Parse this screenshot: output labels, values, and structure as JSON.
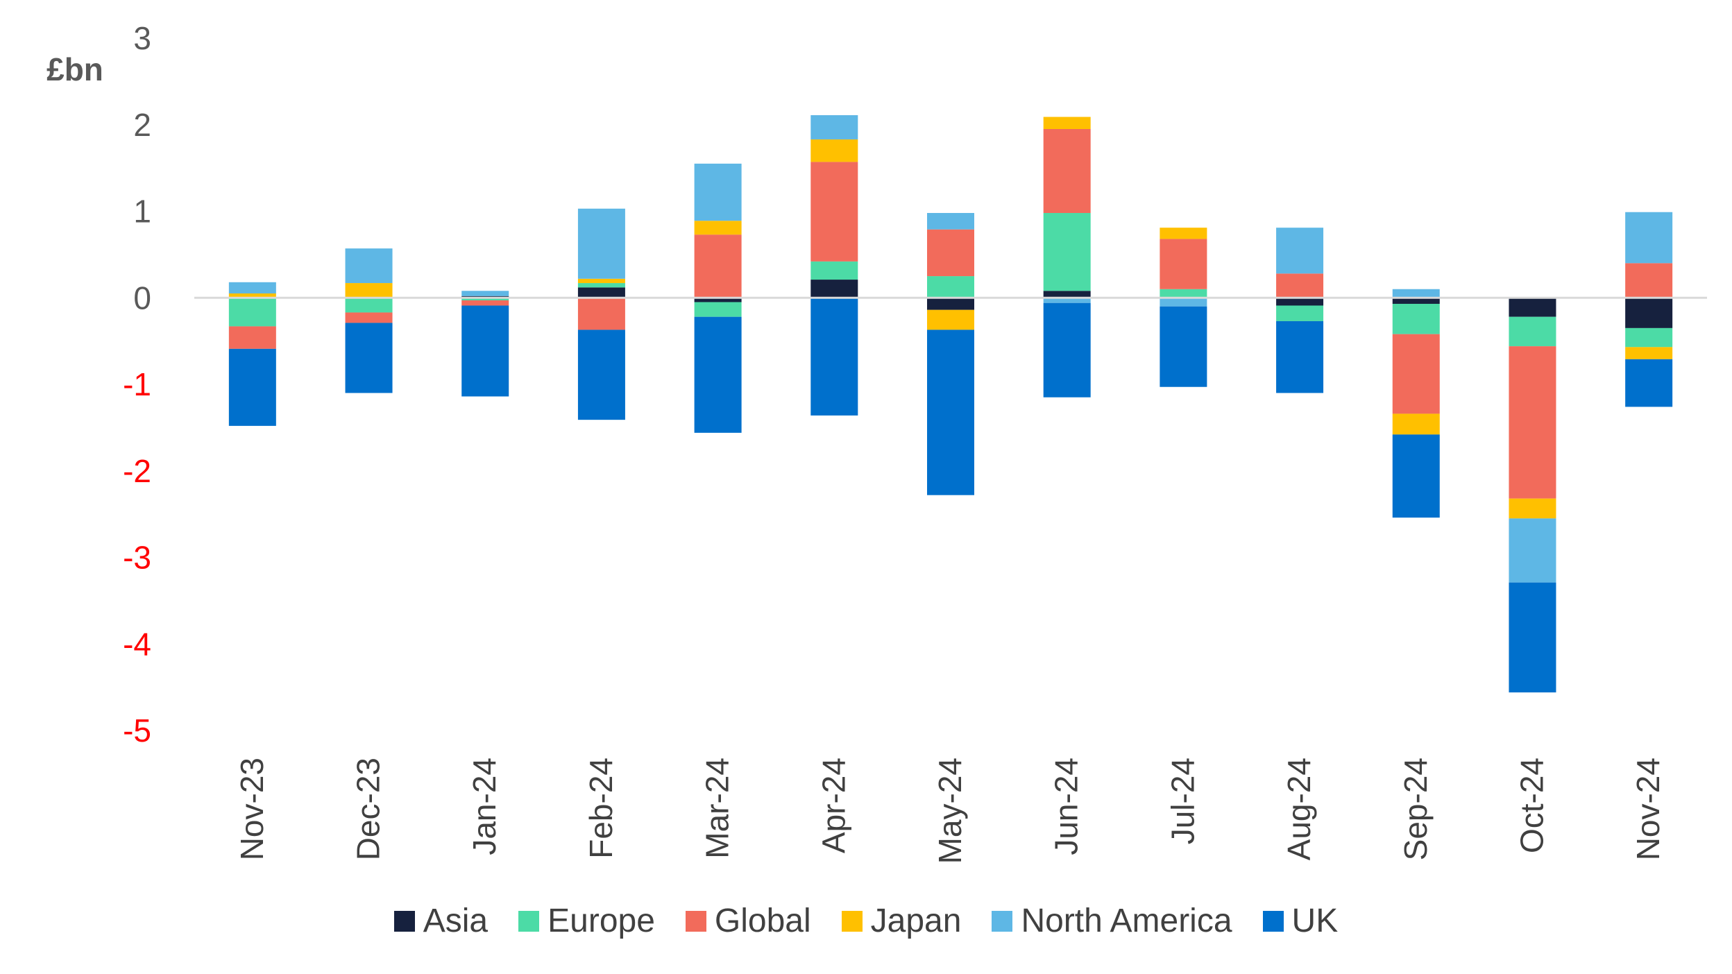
{
  "chart_data": {
    "type": "bar",
    "stacked": true,
    "unit_label": "£bn",
    "categories": [
      "Nov-23",
      "Dec-23",
      "Jan-24",
      "Feb-24",
      "Mar-24",
      "Apr-24",
      "May-24",
      "Jun-24",
      "Jul-24",
      "Aug-24",
      "Sep-24",
      "Oct-24",
      "Nov-24"
    ],
    "ylim": [
      -5,
      3
    ],
    "yticks": [
      "3",
      "2",
      "1",
      "0",
      "-1",
      "-2",
      "-3",
      "-4",
      "-5"
    ],
    "ytick_values": [
      3,
      2,
      1,
      0,
      -1,
      -2,
      -3,
      -4,
      -5
    ],
    "negative_tick_color": "#ff0000",
    "positive_tick_color": "#595959",
    "grid": false,
    "legend_position": "bottom",
    "series": [
      {
        "name": "Asia",
        "color": "#16213e",
        "values": [
          0.01,
          0.0,
          0.02,
          0.12,
          -0.05,
          0.21,
          -0.14,
          0.08,
          0.0,
          -0.09,
          -0.07,
          -0.22,
          -0.35
        ]
      },
      {
        "name": "Europe",
        "color": "#4cdba6",
        "values": [
          -0.33,
          -0.17,
          -0.03,
          0.05,
          -0.17,
          0.21,
          0.25,
          0.9,
          0.1,
          -0.18,
          -0.35,
          -0.34,
          -0.22
        ]
      },
      {
        "name": "Global",
        "color": "#f26b5b",
        "values": [
          -0.26,
          -0.12,
          -0.06,
          -0.37,
          0.73,
          1.15,
          0.54,
          0.97,
          0.58,
          0.28,
          -0.92,
          -1.76,
          0.4
        ]
      },
      {
        "name": "Japan",
        "color": "#ffc000",
        "values": [
          0.04,
          0.17,
          0.0,
          0.05,
          0.16,
          0.26,
          -0.23,
          0.14,
          0.13,
          0.0,
          -0.24,
          -0.23,
          -0.14
        ]
      },
      {
        "name": "North America",
        "color": "#5eb7e5",
        "values": [
          0.13,
          0.4,
          0.06,
          0.81,
          0.66,
          0.28,
          0.19,
          -0.06,
          -0.1,
          0.53,
          0.1,
          -0.74,
          0.59
        ]
      },
      {
        "name": "UK",
        "color": "#0070cc",
        "values": [
          -0.89,
          -0.81,
          -1.05,
          -1.04,
          -1.34,
          -1.36,
          -1.91,
          -1.09,
          -0.93,
          -0.83,
          -0.96,
          -1.27,
          -0.55
        ]
      }
    ]
  }
}
